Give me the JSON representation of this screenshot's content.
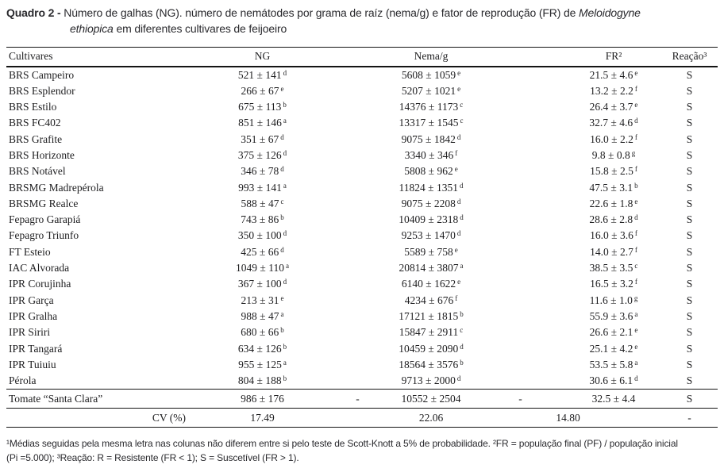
{
  "title": {
    "label": "Quadro 2 -",
    "before_species": " Número de galhas (NG). número de nemátodes por grama de raíz (nema/g) e fator de reprodução (FR) de ",
    "species_l1": "Meloidogyne",
    "species_l2": "ethiopica",
    "after_species": " em diferentes cultivares de feijoeiro"
  },
  "table": {
    "headers": {
      "cultivar": "Cultivares",
      "ng": "NG",
      "nema": "Nema/g",
      "fr": "FR²",
      "reacao": "Reação³"
    },
    "rows": [
      {
        "name": "BRS Campeiro",
        "ng": "521 ± 141",
        "ngs": "d",
        "nema": "5608 ± 1059",
        "nemas": "e",
        "fr": "21.5 ± 4.6",
        "frs": "e",
        "r": "S"
      },
      {
        "name": "BRS Esplendor",
        "ng": "266 ± 67",
        "ngs": "e",
        "nema": "5207 ± 1021",
        "nemas": "e",
        "fr": "13.2 ± 2.2",
        "frs": "f",
        "r": "S"
      },
      {
        "name": "BRS Estilo",
        "ng": "675 ± 113",
        "ngs": "b",
        "nema": "14376 ± 1173",
        "nemas": "c",
        "fr": "26.4 ± 3.7",
        "frs": "e",
        "r": "S"
      },
      {
        "name": "BRS FC402",
        "ng": "851 ± 146",
        "ngs": "a",
        "nema": "13317 ± 1545",
        "nemas": "c",
        "fr": "32.7 ± 4.6",
        "frs": "d",
        "r": "S"
      },
      {
        "name": "BRS Grafite",
        "ng": "351 ± 67",
        "ngs": "d",
        "nema": "9075 ± 1842",
        "nemas": "d",
        "fr": "16.0 ± 2.2",
        "frs": "f",
        "r": "S"
      },
      {
        "name": "BRS Horizonte",
        "ng": "375 ± 126",
        "ngs": "d",
        "nema": "3340 ± 346",
        "nemas": "f",
        "fr": "9.8 ± 0.8",
        "frs": "g",
        "r": "S"
      },
      {
        "name": "BRS Notável",
        "ng": "346 ± 78",
        "ngs": "d",
        "nema": "5808 ± 962",
        "nemas": "e",
        "fr": "15.8 ± 2.5",
        "frs": "f",
        "r": "S"
      },
      {
        "name": "BRSMG Madrepérola",
        "ng": "993 ± 141",
        "ngs": "a",
        "nema": "11824 ± 1351",
        "nemas": "d",
        "fr": "47.5 ± 3.1",
        "frs": "b",
        "r": "S"
      },
      {
        "name": "BRSMG Realce",
        "ng": "588 ± 47",
        "ngs": "c",
        "nema": "9075 ± 2208",
        "nemas": "d",
        "fr": "22.6 ± 1.8",
        "frs": "e",
        "r": "S"
      },
      {
        "name": "Fepagro Garapiá",
        "ng": "743 ± 86",
        "ngs": "b",
        "nema": "10409 ± 2318",
        "nemas": "d",
        "fr": "28.6 ± 2.8",
        "frs": "d",
        "r": "S"
      },
      {
        "name": "Fepagro Triunfo",
        "ng": "350 ± 100",
        "ngs": "d",
        "nema": "9253 ± 1470",
        "nemas": "d",
        "fr": "16.0 ± 3.6",
        "frs": "f",
        "r": "S"
      },
      {
        "name": "FT Esteio",
        "ng": "425 ± 66",
        "ngs": "d",
        "nema": "5589 ± 758",
        "nemas": "e",
        "fr": "14.0 ± 2.7",
        "frs": "f",
        "r": "S"
      },
      {
        "name": "IAC Alvorada",
        "ng": "1049 ± 110",
        "ngs": "a",
        "nema": "20814 ± 3807",
        "nemas": "a",
        "fr": "38.5 ± 3.5",
        "frs": "c",
        "r": "S"
      },
      {
        "name": "IPR Corujinha",
        "ng": "367 ± 100",
        "ngs": "d",
        "nema": "6140 ± 1622",
        "nemas": "e",
        "fr": "16.5 ± 3.2",
        "frs": "f",
        "r": "S"
      },
      {
        "name": "IPR Garça",
        "ng": "213 ± 31",
        "ngs": "e",
        "nema": "4234 ± 676",
        "nemas": "f",
        "fr": "11.6 ± 1.0",
        "frs": "g",
        "r": "S"
      },
      {
        "name": "IPR Gralha",
        "ng": "988 ± 47",
        "ngs": "a",
        "nema": "17121 ± 1815",
        "nemas": "b",
        "fr": "55.9 ± 3.6",
        "frs": "a",
        "r": "S"
      },
      {
        "name": "IPR Siriri",
        "ng": "680 ± 66",
        "ngs": "b",
        "nema": "15847 ± 2911",
        "nemas": "c",
        "fr": "26.6 ± 2.1",
        "frs": "e",
        "r": "S"
      },
      {
        "name": "IPR Tangará",
        "ng": "634 ± 126",
        "ngs": "b",
        "nema": "10459 ± 2090",
        "nemas": "d",
        "fr": "25.1 ± 4.2",
        "frs": "e",
        "r": "S"
      },
      {
        "name": "IPR Tuiuiu",
        "ng": "955 ± 125",
        "ngs": "a",
        "nema": "18564 ± 3576",
        "nemas": "b",
        "fr": "53.5 ± 5.8",
        "frs": "a",
        "r": "S"
      },
      {
        "name": "Pérola",
        "ng": "804 ± 188",
        "ngs": "b",
        "nema": "9713 ± 2000",
        "nemas": "d",
        "fr": "30.6 ± 6.1",
        "frs": "d",
        "r": "S"
      }
    ],
    "control_row": {
      "name": "Tomate “Santa Clara”",
      "ng": "986 ± 176",
      "sep1": "-",
      "nema": "10552 ± 2504",
      "sep2": "-",
      "fr": "32.5 ± 4.4",
      "r": "S"
    },
    "cv_row": {
      "label": "CV (%)",
      "ng": "17.49",
      "nema": "22.06",
      "fr": "14.80",
      "r": "-"
    }
  },
  "footnote": {
    "lines": [
      "¹Médias seguidas pela mesma letra nas colunas não diferem entre si pelo teste de Scott-Knott a 5% de probabilidade. ²FR = população final (PF) / população inicial",
      "(Pi =5.000); ³Reação: R = Resistente (FR < 1); S = Suscetível (FR > 1)."
    ]
  }
}
